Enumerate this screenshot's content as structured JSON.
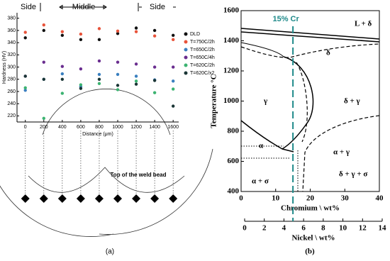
{
  "chart_data": [
    {
      "type": "scatter",
      "x_label": "Distance (μm)",
      "y_label": "Hardness (HV)",
      "region_labels": [
        "Side",
        "Middle",
        "Side"
      ],
      "annotation": "Top of the weld bead",
      "caption": "(a)",
      "x": [
        0,
        200,
        400,
        600,
        800,
        1000,
        1200,
        1400,
        1600
      ],
      "series": [
        {
          "name": "DLD",
          "color": "#111111",
          "values": [
            348,
            360,
            352,
            345,
            345,
            355,
            364,
            360,
            352
          ]
        },
        {
          "name": "T=750C/2h",
          "color": "#e8533a",
          "values": [
            357,
            369,
            358,
            354,
            363,
            359,
            358,
            351,
            345
          ]
        },
        {
          "name": "T=650C/2h",
          "color": "#3a7fbf",
          "values": [
            262,
            280,
            289,
            268,
            288,
            288,
            285,
            279,
            277
          ]
        },
        {
          "name": "T=650C/4h",
          "color": "#6a2d8f",
          "values": [
            285,
            308,
            301,
            297,
            310,
            308,
            305,
            300,
            300
          ]
        },
        {
          "name": "T=620C/2h",
          "color": "#3cb371",
          "values": [
            266,
            216,
            257,
            271,
            273,
            263,
            277,
            258,
            264
          ]
        },
        {
          "name": "T=620C/x2",
          "color": "#1a3535",
          "values": [
            285,
            280,
            280,
            265,
            280,
            270,
            272,
            278,
            236
          ]
        }
      ],
      "xlim": [
        -90,
        1660
      ],
      "xticks": [
        0,
        200,
        400,
        600,
        800,
        1000,
        1200,
        1400,
        1600
      ],
      "ylim": [
        210,
        389
      ],
      "yticks": [
        220,
        240,
        260,
        280,
        300,
        320,
        340,
        360,
        380
      ],
      "legend": "outside-right"
    },
    {
      "type": "phase-diagram",
      "x_label": "Chromium \\ wt%",
      "y_label": "Temperature °C",
      "x2_label": "Nickel \\ wt%",
      "caption": "(b)",
      "marker_label": "15% Cr",
      "marker_x": 15,
      "marker_color": "#1f8a8a",
      "phase_labels": [
        "L + δ",
        "δ",
        "γ",
        "δ + γ",
        "α + γ",
        "α",
        "α + σ",
        "δ + γ + σ"
      ],
      "xlim": [
        0,
        40
      ],
      "xticks": [
        0,
        10,
        20,
        30,
        40
      ],
      "ylim": [
        400,
        1600
      ],
      "yticks": [
        400,
        600,
        800,
        1000,
        1200,
        1400,
        1600
      ],
      "x2lim": [
        0,
        14
      ],
      "x2ticks": [
        0,
        2,
        4,
        6,
        8,
        10,
        12,
        14
      ]
    }
  ]
}
